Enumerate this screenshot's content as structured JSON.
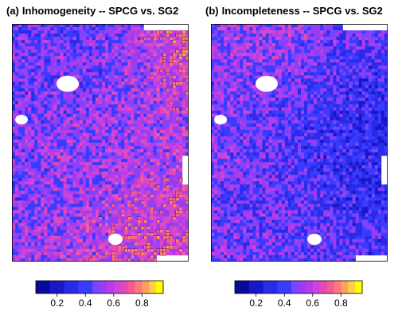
{
  "panels": [
    {
      "tag": "(a)",
      "title": "Inhomogeneity -- SPCG vs. SG2",
      "seed": 11,
      "bias": 0.68
    },
    {
      "tag": "(b)",
      "title": "Incompleteness -- SPCG vs. SG2",
      "seed": 29,
      "bias": 0.42
    }
  ],
  "legend": {
    "range": [
      0.05,
      0.95
    ],
    "ticks": [
      "0.2",
      "0.4",
      "0.6",
      "0.8"
    ],
    "tick_values": [
      0.2,
      0.4,
      0.6,
      0.8
    ],
    "bins": [
      0.05,
      0.1,
      0.15,
      0.2,
      0.25,
      0.3,
      0.35,
      0.4,
      0.45,
      0.5,
      0.55,
      0.6,
      0.65,
      0.7,
      0.75,
      0.8,
      0.85,
      0.9,
      0.95
    ],
    "colors": [
      "#0a0a9a",
      "#0a0a9a",
      "#1818c8",
      "#1818c8",
      "#2a2ae8",
      "#2a2ae8",
      "#3b3bff",
      "#3b3bff",
      "#7b44ff",
      "#9a3cf0",
      "#b73ce6",
      "#cc44dd",
      "#e34ab8",
      "#f45c96",
      "#ff7a7a",
      "#ffa060",
      "#ffd040",
      "#ffff00"
    ]
  },
  "palette": {
    "dark_blue": "#0a0a9a",
    "blue": "#2a2ae8",
    "purple": "#b73ce6",
    "magenta": "#cc44dd",
    "pink": "#f45c96",
    "orange": "#ffa060",
    "yellow": "#ffff00",
    "outline": "#000000"
  }
}
